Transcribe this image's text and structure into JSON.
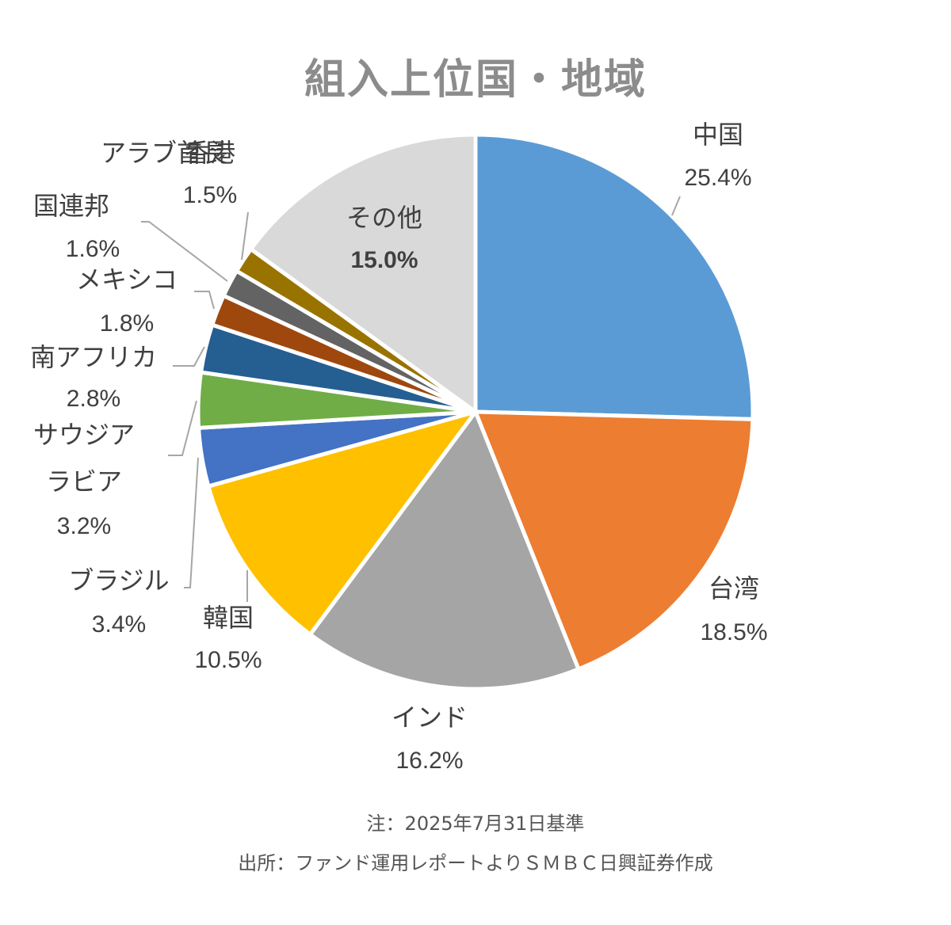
{
  "chart_data": {
    "type": "pie",
    "title": "組入上位国・地域",
    "slices": [
      {
        "name": "中国",
        "value": 25.4,
        "label": "25.4%",
        "color": "#5b9bd5"
      },
      {
        "name": "台湾",
        "value": 18.5,
        "label": "18.5%",
        "color": "#ed7d31"
      },
      {
        "name": "インド",
        "value": 16.2,
        "label": "16.2%",
        "color": "#a5a5a5"
      },
      {
        "name": "韓国",
        "value": 10.5,
        "label": "10.5%",
        "color": "#ffc000"
      },
      {
        "name": "ブラジル",
        "value": 3.4,
        "label": "3.4%",
        "color": "#4472c4"
      },
      {
        "name": "サウジアラビア",
        "value": 3.2,
        "label": "3.2%",
        "color": "#70ad47"
      },
      {
        "name": "南アフリカ",
        "value": 2.8,
        "label": "2.8%",
        "color": "#255e91"
      },
      {
        "name": "メキシコ",
        "value": 1.8,
        "label": "1.8%",
        "color": "#9e480e"
      },
      {
        "name": "アラブ首長国連邦",
        "value": 1.6,
        "label": "1.6%",
        "color": "#636363"
      },
      {
        "name": "香港",
        "value": 1.5,
        "label": "1.5%",
        "color": "#997300"
      },
      {
        "name": "その他",
        "value": 15.0,
        "label": "15.0%",
        "color": "#d9d9d9"
      }
    ]
  },
  "notes": {
    "note": "注：2025年7月31日基準",
    "source": "出所：ファンド運用レポートよりＳＭＢＣ日興証券作成"
  }
}
